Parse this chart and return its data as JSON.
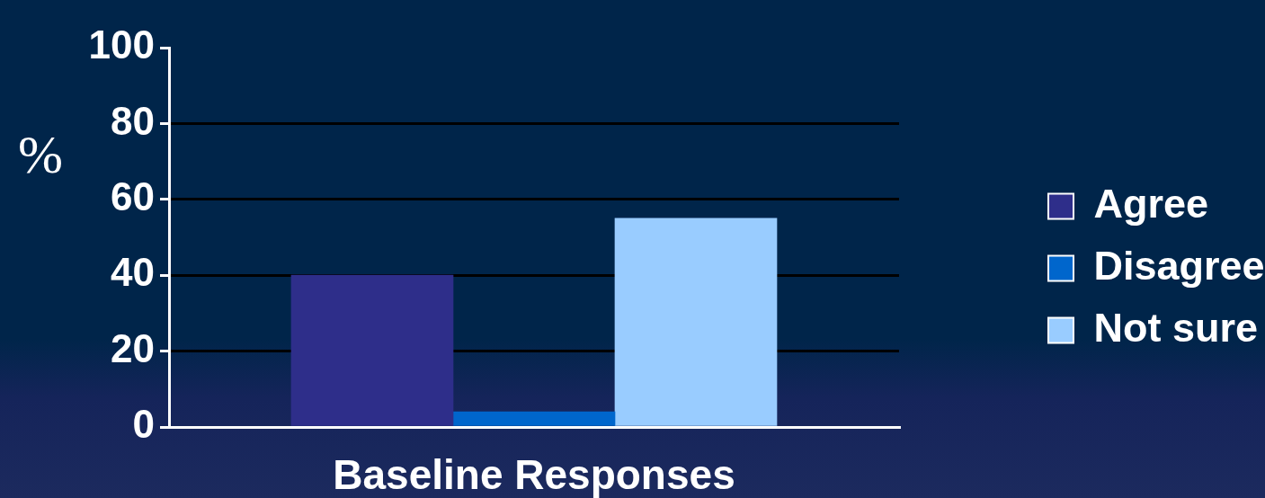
{
  "chart_data": {
    "type": "bar",
    "categories": [
      null,
      null,
      null
    ],
    "xlabel": "Baseline Responses",
    "series": [
      {
        "name": "Agree",
        "color": "#2e2e8a",
        "values": [
          40,
          null,
          null
        ]
      },
      {
        "name": "Disagree",
        "color": "#0066cc",
        "values": [
          null,
          4,
          null
        ]
      },
      {
        "name": "Not sure",
        "color": "#99ccff",
        "values": [
          null,
          null,
          55
        ]
      }
    ],
    "ylabel": "%",
    "ylim": [
      0,
      100
    ],
    "yticks": [
      0,
      20,
      40,
      60,
      80,
      100
    ],
    "grid": "y",
    "legend": "right"
  }
}
